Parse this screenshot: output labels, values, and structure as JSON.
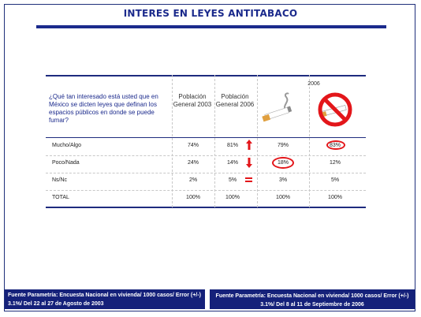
{
  "title": "INTERES EN LEYES ANTITABACO",
  "table": {
    "question": "¿Qué tan interesado está usted que en México se dicten leyes que definan los espacios públicos en donde se puede fumar?",
    "col_2003": "Población General 2003",
    "col_2006": "Población General 2006",
    "year_group": "2006",
    "icons": {
      "smokers": "cigarette-icon",
      "non_smokers": "no-smoking-icon"
    },
    "rows": [
      {
        "label": "Mucho/Algo",
        "v2003": "74%",
        "v2006": "81%",
        "smokers": "79%",
        "non_smokers": "83%",
        "trend": "up"
      },
      {
        "label": "Poco/Nada",
        "v2003": "24%",
        "v2006": "14%",
        "smokers": "18%",
        "non_smokers": "12%",
        "trend": "down"
      },
      {
        "label": "Ns/Nc",
        "v2003": "2%",
        "v2006": "5%",
        "smokers": "3%",
        "non_smokers": "5%",
        "trend": "equal"
      },
      {
        "label": "TOTAL",
        "v2003": "100%",
        "v2006": "100%",
        "smokers": "100%",
        "non_smokers": "100%"
      }
    ]
  },
  "sources": {
    "left": "Fuente Parametría: Encuesta Nacional en vivienda/ 1000 casos/ Error (+/-) 3.1%/ Del 22 al 27 de Agosto de 2003",
    "right": "Fuente Parametría: Encuesta Nacional en vivienda/ 1000 casos/ Error (+/-) 3.1%/ Del 8 al 11 de Septiembre de 2006"
  },
  "colors": {
    "brand": "#1b2a8c",
    "highlight": "#e3161a"
  }
}
